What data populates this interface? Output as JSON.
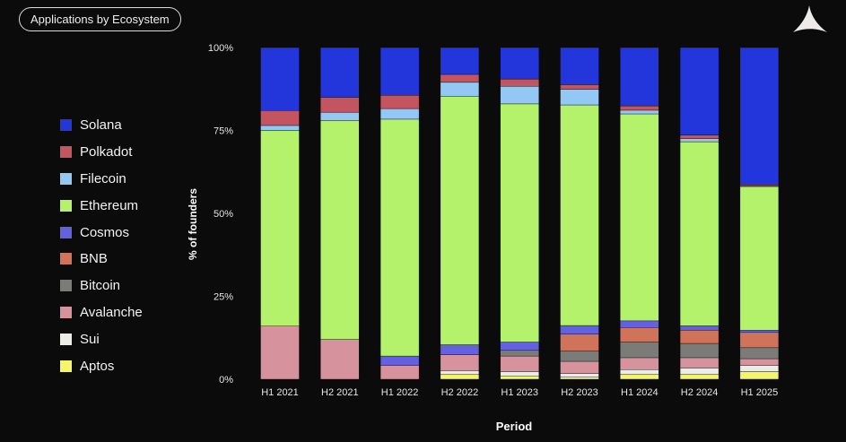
{
  "header": {
    "badge": "Applications by Ecosystem"
  },
  "logo": {
    "icon": "triangle-logo"
  },
  "chart_data": {
    "type": "bar",
    "stacked": true,
    "xlabel": "Period",
    "ylabel": "% of founders",
    "ylim": [
      0,
      100
    ],
    "yticks": [
      "0%",
      "25%",
      "50%",
      "75%",
      "100%"
    ],
    "legend_position": "left",
    "categories": [
      "H1 2021",
      "H2 2021",
      "H1 2022",
      "H2 2022",
      "H1 2023",
      "H2 2023",
      "H1 2024",
      "H2 2024",
      "H1 2025"
    ],
    "series": [
      {
        "name": "Aptos",
        "color": "#f5f56a",
        "values": [
          0,
          0,
          0,
          1.4,
          1,
          0.6,
          1.4,
          1.4,
          2.3
        ]
      },
      {
        "name": "Sui",
        "color": "#ebebe8",
        "values": [
          0,
          0,
          0,
          1.2,
          1.3,
          1.1,
          1.5,
          2,
          1.9
        ]
      },
      {
        "name": "Avalanche",
        "color": "#d6939e",
        "values": [
          16,
          12,
          4.2,
          4.8,
          4.7,
          3.7,
          3.6,
          3.1,
          2
        ]
      },
      {
        "name": "Bitcoin",
        "color": "#7b7b78",
        "values": [
          0,
          0,
          0,
          0,
          1.7,
          3.2,
          4.7,
          4.3,
          3.3
        ]
      },
      {
        "name": "BNB",
        "color": "#d0735b",
        "values": [
          0,
          0,
          0,
          0,
          0,
          5,
          4.4,
          4,
          4.6
        ]
      },
      {
        "name": "Cosmos",
        "color": "#6461e0",
        "values": [
          0,
          0,
          2.8,
          3,
          2.5,
          2.6,
          2,
          1.3,
          0.7
        ]
      },
      {
        "name": "Ethereum",
        "color": "#b5f26b",
        "values": [
          59,
          66,
          71.4,
          74.8,
          71.8,
          66.5,
          62.4,
          55.5,
          43.3
        ]
      },
      {
        "name": "Filecoin",
        "color": "#92c8f3",
        "values": [
          1.5,
          2.5,
          3.2,
          4.3,
          5.3,
          4.7,
          1.1,
          0.9,
          0.2
        ]
      },
      {
        "name": "Polkadot",
        "color": "#c25560",
        "values": [
          4.5,
          4.5,
          4,
          2.4,
          2.2,
          1.4,
          1.3,
          1.1,
          0.3
        ]
      },
      {
        "name": "Solana",
        "color": "#2236dc",
        "values": [
          19,
          15,
          14.4,
          8.1,
          9.5,
          11.2,
          17.6,
          26.4,
          41.4
        ]
      }
    ]
  }
}
